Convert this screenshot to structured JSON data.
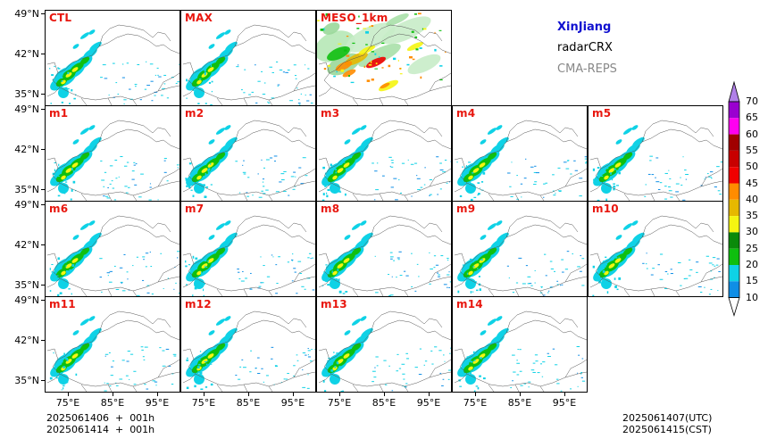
{
  "panels": [
    {
      "label": "CTL",
      "col": 0,
      "row": 0,
      "kind": "std"
    },
    {
      "label": "MAX",
      "col": 1,
      "row": 0,
      "kind": "std"
    },
    {
      "label": "MESO_1km",
      "col": 2,
      "row": 0,
      "kind": "meso"
    },
    {
      "label": "m1",
      "col": 0,
      "row": 1,
      "kind": "std"
    },
    {
      "label": "m2",
      "col": 1,
      "row": 1,
      "kind": "std"
    },
    {
      "label": "m3",
      "col": 2,
      "row": 1,
      "kind": "std"
    },
    {
      "label": "m4",
      "col": 3,
      "row": 1,
      "kind": "std"
    },
    {
      "label": "m5",
      "col": 4,
      "row": 1,
      "kind": "std"
    },
    {
      "label": "m6",
      "col": 0,
      "row": 2,
      "kind": "std"
    },
    {
      "label": "m7",
      "col": 1,
      "row": 2,
      "kind": "std"
    },
    {
      "label": "m8",
      "col": 2,
      "row": 2,
      "kind": "std"
    },
    {
      "label": "m9",
      "col": 3,
      "row": 2,
      "kind": "std"
    },
    {
      "label": "m10",
      "col": 4,
      "row": 2,
      "kind": "std"
    },
    {
      "label": "m11",
      "col": 0,
      "row": 3,
      "kind": "std"
    },
    {
      "label": "m12",
      "col": 1,
      "row": 3,
      "kind": "std"
    },
    {
      "label": "m13",
      "col": 2,
      "row": 3,
      "kind": "std"
    },
    {
      "label": "m14",
      "col": 3,
      "row": 3,
      "kind": "std"
    }
  ],
  "lat_labels": [
    "49°N",
    "42°N",
    "35°N"
  ],
  "lon_labels": [
    "75°E",
    "85°E",
    "95°E"
  ],
  "info": {
    "region": "XinJiang",
    "region_color": "#1010d0",
    "product": "radarCRX",
    "system": "CMA-REPS",
    "system_color": "#888888"
  },
  "footer_left": {
    "line1": "2025061406  +  001h",
    "line2": "2025061414  +  001h"
  },
  "footer_right": {
    "line1": "2025061407(UTC)",
    "line2": "2025061415(CST)"
  },
  "colorbar": {
    "labels": [
      "10",
      "15",
      "20",
      "25",
      "30",
      "35",
      "40",
      "45",
      "50",
      "55",
      "60",
      "65",
      "70"
    ],
    "colors": [
      "#0f8ee6",
      "#0fd2e6",
      "#0fbf0f",
      "#0a8a0a",
      "#f5f511",
      "#e6b800",
      "#ff8c00",
      "#f00000",
      "#c80000",
      "#a00000",
      "#ff00f0",
      "#9a00d0",
      "#b080e8"
    ],
    "under_color": "#ffffff",
    "over_color": "#b080e8"
  }
}
